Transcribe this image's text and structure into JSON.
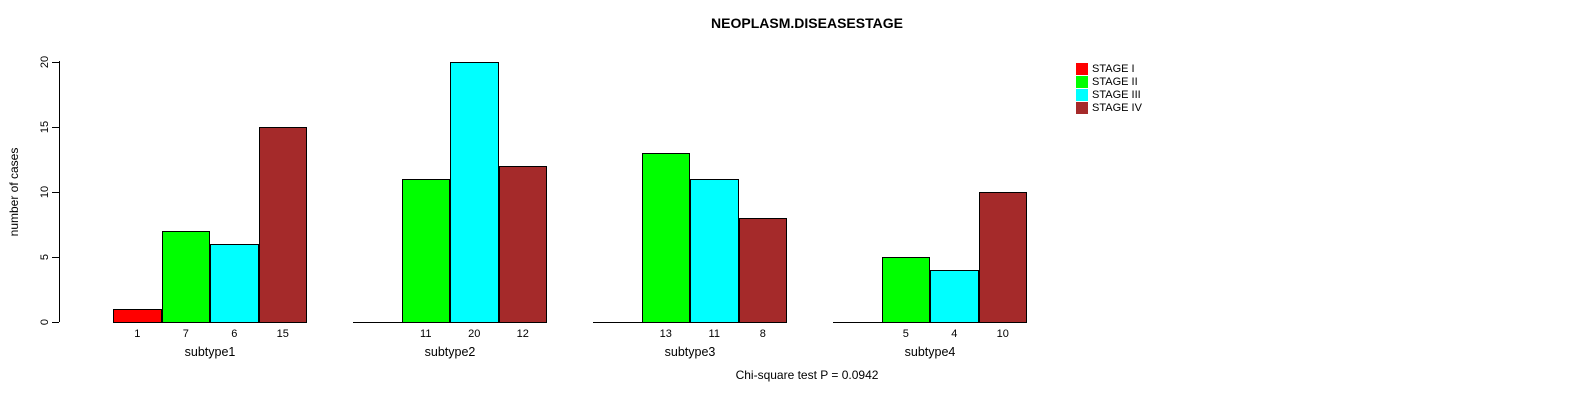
{
  "chart_data": {
    "type": "bar",
    "title": "NEOPLASM.DISEASESTAGE",
    "ylabel": "number of cases",
    "xlabel": "",
    "ylim": [
      0,
      20
    ],
    "yticks": [
      0,
      5,
      10,
      15,
      20
    ],
    "grid": false,
    "categories": [
      "subtype1",
      "subtype2",
      "subtype3",
      "subtype4"
    ],
    "series": [
      {
        "name": "STAGE I",
        "color": "#ff0000",
        "values": [
          1,
          0,
          0,
          0
        ]
      },
      {
        "name": "STAGE II",
        "color": "#00ff00",
        "values": [
          7,
          11,
          13,
          5
        ]
      },
      {
        "name": "STAGE III",
        "color": "#00ffff",
        "values": [
          6,
          20,
          11,
          4
        ]
      },
      {
        "name": "STAGE IV",
        "color": "#a52a2a",
        "values": [
          15,
          12,
          8,
          10
        ]
      }
    ],
    "bar_value_labels": {
      "subtype1": [
        "1",
        "7",
        "6",
        "15"
      ],
      "subtype2": [
        "",
        "11",
        "20",
        "12"
      ],
      "subtype3": [
        "",
        "13",
        "11",
        "8"
      ],
      "subtype4": [
        "",
        "5",
        "4",
        "10"
      ]
    },
    "legend_position": "top-right",
    "footnote": "Chi-square test P = 0.0942"
  }
}
